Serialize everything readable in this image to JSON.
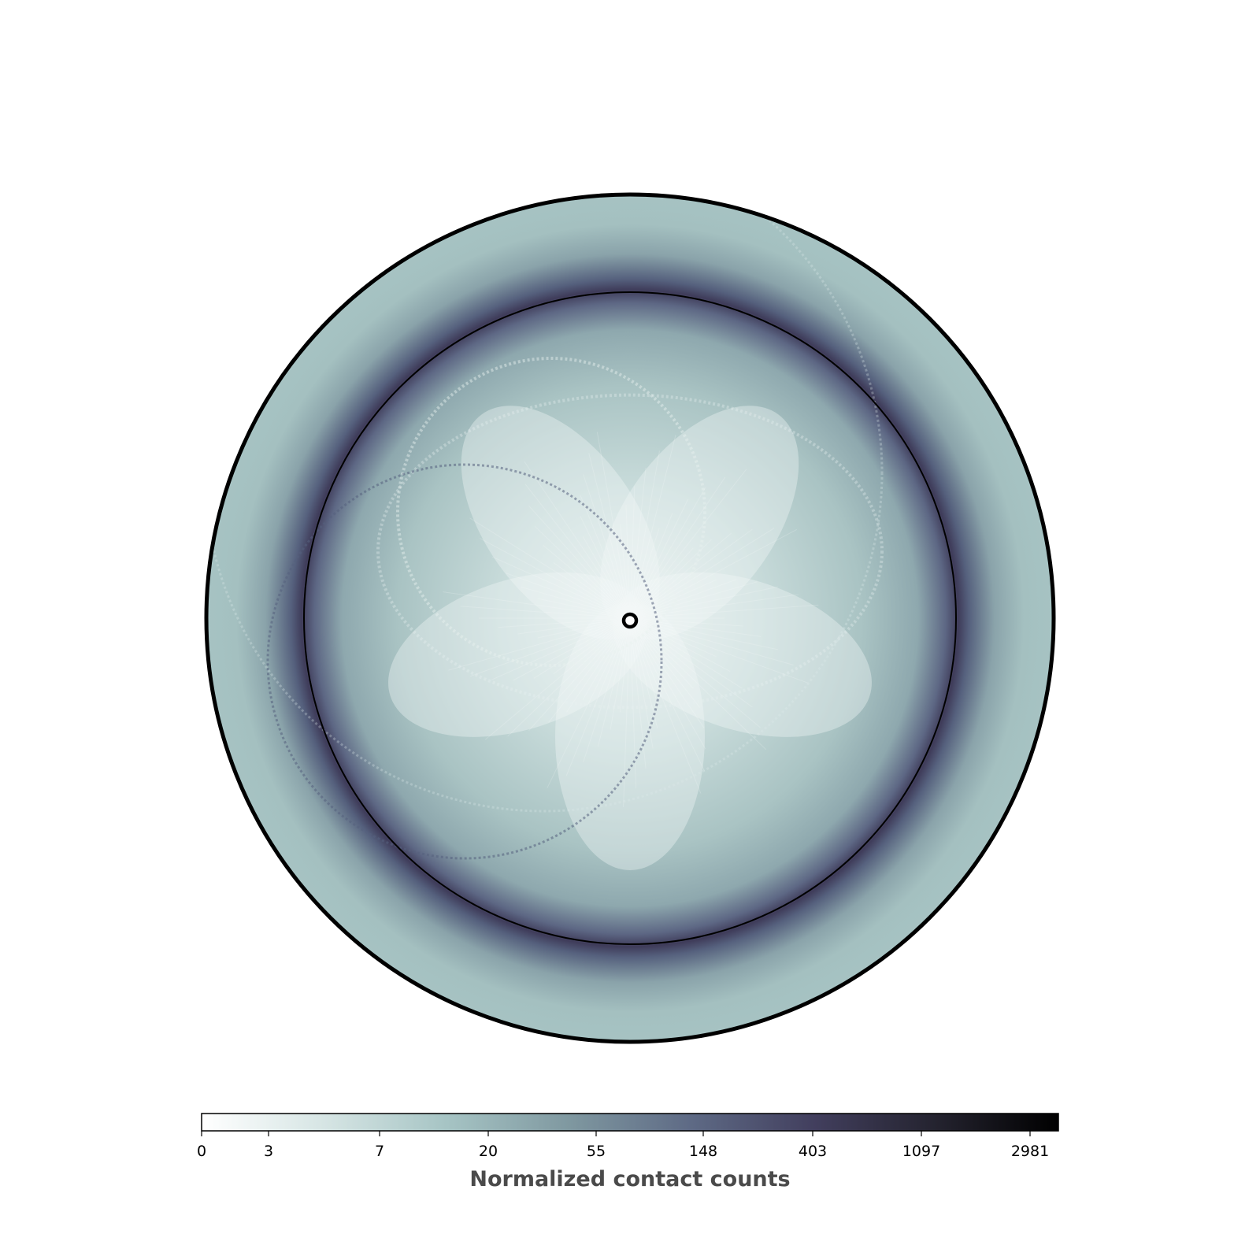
{
  "chart_data": {
    "type": "heatmap",
    "description": "Polar contact-count map with a center marker, an inner reference circle and an outer boundary circle",
    "colormap": [
      "#ffffff",
      "#d6e5e4",
      "#a6c4c4",
      "#7f98a0",
      "#5e6a85",
      "#423f5e",
      "#24232f",
      "#000000"
    ],
    "colorbar": {
      "label": "Normalized contact counts",
      "ticks": [
        "0",
        "3",
        "7",
        "20",
        "55",
        "148",
        "403",
        "1097",
        "2981"
      ],
      "scale": "log"
    },
    "features": {
      "center_marker": "open circle",
      "inner_circle_radius_fraction": 0.77,
      "dark_band": "ring around the inner circle",
      "petals": 5
    }
  }
}
